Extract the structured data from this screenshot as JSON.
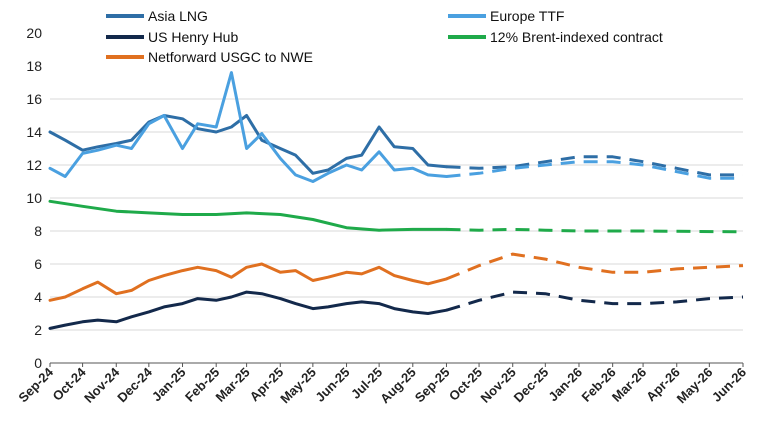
{
  "chart_data": {
    "type": "line",
    "title": "",
    "xlabel": "",
    "ylabel": "",
    "ylim": [
      0,
      20
    ],
    "yticks": [
      0,
      2,
      4,
      6,
      8,
      10,
      12,
      14,
      16,
      18,
      20
    ],
    "x_range": [
      "2024-09-01",
      "2026-06-01"
    ],
    "categories": [
      "Sep-24",
      "Oct-24",
      "Nov-24",
      "Dec-24",
      "Jan-25",
      "Feb-25",
      "Mar-25",
      "Apr-25",
      "May-25",
      "Jun-25",
      "Jul-25",
      "Aug-25",
      "Sep-25",
      "Oct-25",
      "Nov-25",
      "Dec-25",
      "Jan-26",
      "Feb-26",
      "Mar-26",
      "Apr-26",
      "May-26",
      "Jun-26"
    ],
    "grid": true,
    "legend_position": "top",
    "forecast_note_style": "dashed",
    "series": [
      {
        "name": "Asia LNG",
        "color": "#2e6ea6",
        "historical": [
          [
            "2024-09-01",
            14.0
          ],
          [
            "2024-09-15",
            13.5
          ],
          [
            "2024-10-01",
            12.9
          ],
          [
            "2024-10-15",
            13.1
          ],
          [
            "2024-11-01",
            13.3
          ],
          [
            "2024-11-15",
            13.5
          ],
          [
            "2024-12-01",
            14.6
          ],
          [
            "2024-12-15",
            15.0
          ],
          [
            "2025-01-01",
            14.8
          ],
          [
            "2025-01-15",
            14.2
          ],
          [
            "2025-02-01",
            14.0
          ],
          [
            "2025-02-15",
            14.3
          ],
          [
            "2025-03-01",
            15.0
          ],
          [
            "2025-03-15",
            13.5
          ],
          [
            "2025-04-01",
            13.0
          ],
          [
            "2025-04-15",
            12.6
          ],
          [
            "2025-05-01",
            11.5
          ],
          [
            "2025-05-15",
            11.7
          ],
          [
            "2025-06-01",
            12.4
          ],
          [
            "2025-06-15",
            12.6
          ],
          [
            "2025-07-01",
            14.3
          ],
          [
            "2025-07-15",
            13.1
          ],
          [
            "2025-08-01",
            13.0
          ],
          [
            "2025-08-15",
            12.0
          ],
          [
            "2025-09-01",
            11.9
          ]
        ],
        "forecast": [
          [
            "2025-09-01",
            11.9
          ],
          [
            "2025-10-01",
            11.8
          ],
          [
            "2025-11-01",
            11.9
          ],
          [
            "2025-12-01",
            12.2
          ],
          [
            "2026-01-01",
            12.5
          ],
          [
            "2026-02-01",
            12.5
          ],
          [
            "2026-03-01",
            12.2
          ],
          [
            "2026-04-01",
            11.8
          ],
          [
            "2026-05-01",
            11.4
          ],
          [
            "2026-06-01",
            11.4
          ]
        ]
      },
      {
        "name": "Europe TTF",
        "color": "#4aa0e0",
        "historical": [
          [
            "2024-09-01",
            11.8
          ],
          [
            "2024-09-15",
            11.3
          ],
          [
            "2024-10-01",
            12.7
          ],
          [
            "2024-10-15",
            12.9
          ],
          [
            "2024-11-01",
            13.2
          ],
          [
            "2024-11-15",
            13.0
          ],
          [
            "2024-12-01",
            14.5
          ],
          [
            "2024-12-15",
            15.0
          ],
          [
            "2025-01-01",
            13.0
          ],
          [
            "2025-01-15",
            14.5
          ],
          [
            "2025-02-01",
            14.3
          ],
          [
            "2025-02-15",
            17.6
          ],
          [
            "2025-03-01",
            13.0
          ],
          [
            "2025-03-15",
            13.9
          ],
          [
            "2025-04-01",
            12.4
          ],
          [
            "2025-04-15",
            11.4
          ],
          [
            "2025-05-01",
            11.0
          ],
          [
            "2025-05-15",
            11.5
          ],
          [
            "2025-06-01",
            12.0
          ],
          [
            "2025-06-15",
            11.7
          ],
          [
            "2025-07-01",
            12.8
          ],
          [
            "2025-07-15",
            11.7
          ],
          [
            "2025-08-01",
            11.8
          ],
          [
            "2025-08-15",
            11.4
          ],
          [
            "2025-09-01",
            11.3
          ]
        ],
        "forecast": [
          [
            "2025-09-01",
            11.3
          ],
          [
            "2025-10-01",
            11.5
          ],
          [
            "2025-11-01",
            11.8
          ],
          [
            "2025-12-01",
            12.0
          ],
          [
            "2026-01-01",
            12.2
          ],
          [
            "2026-02-01",
            12.2
          ],
          [
            "2026-03-01",
            12.0
          ],
          [
            "2026-04-01",
            11.6
          ],
          [
            "2026-05-01",
            11.2
          ],
          [
            "2026-06-01",
            11.2
          ]
        ]
      },
      {
        "name": "US Henry Hub",
        "color": "#13294b",
        "historical": [
          [
            "2024-09-01",
            2.1
          ],
          [
            "2024-09-15",
            2.3
          ],
          [
            "2024-10-01",
            2.5
          ],
          [
            "2024-10-15",
            2.6
          ],
          [
            "2024-11-01",
            2.5
          ],
          [
            "2024-11-15",
            2.8
          ],
          [
            "2024-12-01",
            3.1
          ],
          [
            "2024-12-15",
            3.4
          ],
          [
            "2025-01-01",
            3.6
          ],
          [
            "2025-01-15",
            3.9
          ],
          [
            "2025-02-01",
            3.8
          ],
          [
            "2025-02-15",
            4.0
          ],
          [
            "2025-03-01",
            4.3
          ],
          [
            "2025-03-15",
            4.2
          ],
          [
            "2025-04-01",
            3.9
          ],
          [
            "2025-04-15",
            3.6
          ],
          [
            "2025-05-01",
            3.3
          ],
          [
            "2025-05-15",
            3.4
          ],
          [
            "2025-06-01",
            3.6
          ],
          [
            "2025-06-15",
            3.7
          ],
          [
            "2025-07-01",
            3.6
          ],
          [
            "2025-07-15",
            3.3
          ],
          [
            "2025-08-01",
            3.1
          ],
          [
            "2025-08-15",
            3.0
          ],
          [
            "2025-09-01",
            3.2
          ]
        ],
        "forecast": [
          [
            "2025-09-01",
            3.2
          ],
          [
            "2025-10-01",
            3.8
          ],
          [
            "2025-11-01",
            4.3
          ],
          [
            "2025-12-01",
            4.2
          ],
          [
            "2026-01-01",
            3.8
          ],
          [
            "2026-02-01",
            3.6
          ],
          [
            "2026-03-01",
            3.6
          ],
          [
            "2026-04-01",
            3.7
          ],
          [
            "2026-05-01",
            3.9
          ],
          [
            "2026-06-01",
            4.0
          ]
        ]
      },
      {
        "name": "12% Brent-indexed contract",
        "color": "#1faa4a",
        "historical": [
          [
            "2024-09-01",
            9.8
          ],
          [
            "2024-10-01",
            9.5
          ],
          [
            "2024-11-01",
            9.2
          ],
          [
            "2024-12-01",
            9.1
          ],
          [
            "2025-01-01",
            9.0
          ],
          [
            "2025-02-01",
            9.0
          ],
          [
            "2025-03-01",
            9.1
          ],
          [
            "2025-04-01",
            9.0
          ],
          [
            "2025-05-01",
            8.7
          ],
          [
            "2025-06-01",
            8.2
          ],
          [
            "2025-07-01",
            8.05
          ],
          [
            "2025-08-01",
            8.1
          ],
          [
            "2025-09-01",
            8.1
          ]
        ],
        "forecast": [
          [
            "2025-09-01",
            8.1
          ],
          [
            "2025-10-01",
            8.05
          ],
          [
            "2025-11-01",
            8.1
          ],
          [
            "2025-12-01",
            8.05
          ],
          [
            "2026-01-01",
            8.0
          ],
          [
            "2026-03-01",
            8.0
          ],
          [
            "2026-06-01",
            7.95
          ]
        ]
      },
      {
        "name": "Netforward USGC to NWE",
        "color": "#e07020",
        "historical": [
          [
            "2024-09-01",
            3.8
          ],
          [
            "2024-09-15",
            4.0
          ],
          [
            "2024-10-01",
            4.5
          ],
          [
            "2024-10-15",
            4.9
          ],
          [
            "2024-11-01",
            4.2
          ],
          [
            "2024-11-15",
            4.4
          ],
          [
            "2024-12-01",
            5.0
          ],
          [
            "2024-12-15",
            5.3
          ],
          [
            "2025-01-01",
            5.6
          ],
          [
            "2025-01-15",
            5.8
          ],
          [
            "2025-02-01",
            5.6
          ],
          [
            "2025-02-15",
            5.2
          ],
          [
            "2025-03-01",
            5.8
          ],
          [
            "2025-03-15",
            6.0
          ],
          [
            "2025-04-01",
            5.5
          ],
          [
            "2025-04-15",
            5.6
          ],
          [
            "2025-05-01",
            5.0
          ],
          [
            "2025-05-15",
            5.2
          ],
          [
            "2025-06-01",
            5.5
          ],
          [
            "2025-06-15",
            5.4
          ],
          [
            "2025-07-01",
            5.8
          ],
          [
            "2025-07-15",
            5.3
          ],
          [
            "2025-08-01",
            5.0
          ],
          [
            "2025-08-15",
            4.8
          ],
          [
            "2025-09-01",
            5.1
          ]
        ],
        "forecast": [
          [
            "2025-09-01",
            5.1
          ],
          [
            "2025-10-01",
            5.9
          ],
          [
            "2025-11-01",
            6.6
          ],
          [
            "2025-12-01",
            6.3
          ],
          [
            "2026-01-01",
            5.8
          ],
          [
            "2026-02-01",
            5.5
          ],
          [
            "2026-03-01",
            5.5
          ],
          [
            "2026-04-01",
            5.7
          ],
          [
            "2026-05-01",
            5.8
          ],
          [
            "2026-06-01",
            5.9
          ]
        ]
      }
    ]
  }
}
